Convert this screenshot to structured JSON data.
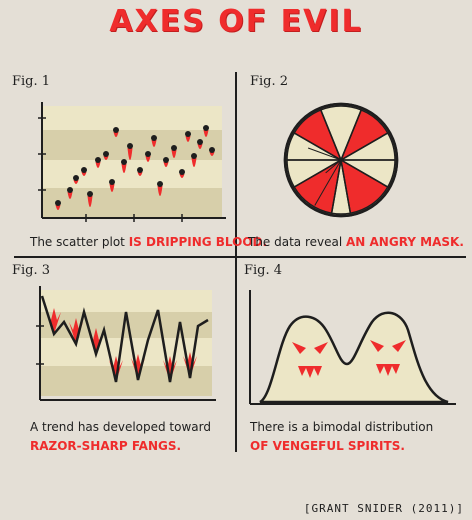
{
  "title": "AXES OF EVIL",
  "fig1": {
    "label": "Fig. 1",
    "caption_plain": "The scatter plot ",
    "caption_red": "IS DRIPPING BLOOD."
  },
  "fig2": {
    "label": "Fig. 2",
    "caption_plain": "The data reveal ",
    "caption_red": "AN ANGRY MASK."
  },
  "fig3": {
    "label": "Fig. 3",
    "caption_plain": "A trend has developed toward",
    "caption_red": "RAZOR-SHARP FANGS."
  },
  "fig4": {
    "label": "Fig. 4",
    "caption_plain": "There is a bimodal distribution",
    "caption_red": "OF VENGEFUL SPIRITS."
  },
  "credit": "[GRANT SNIDER (2011)]",
  "colors": {
    "background": "#e4dfd6",
    "red": "#ef2c2c",
    "band_light": "#ece6c6",
    "band_dark": "#d7cfaa",
    "ink": "#1e1e1e"
  }
}
